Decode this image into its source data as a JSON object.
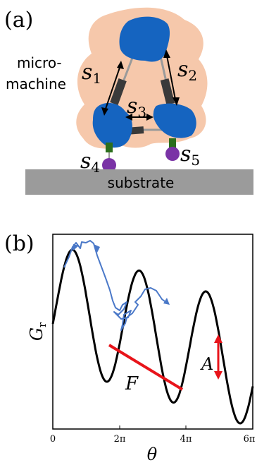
{
  "panel_a": {
    "label": "(a)",
    "machine_label_line1": "micro-",
    "machine_label_line2": "machine",
    "substrate_label": "substrate",
    "springs": [
      "s",
      "s",
      "s",
      "s",
      "s"
    ],
    "spring_subscripts": [
      "1",
      "2",
      "3",
      "4",
      "5"
    ]
  },
  "panel_b": {
    "label": "(b)",
    "ylabel_main": "G",
    "ylabel_sub": "r",
    "xlabel": "θ",
    "xticks": [
      "0",
      "2π",
      "4π",
      "6π"
    ],
    "force_label": "F",
    "amplitude_label": "A",
    "colors": {
      "landscape": "#000000",
      "trajectory": "#4a78c8",
      "annotations": "#e8141a"
    }
  }
}
